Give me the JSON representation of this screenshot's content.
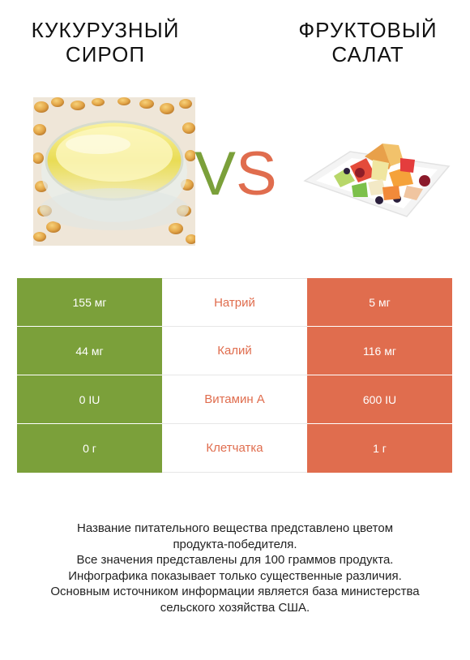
{
  "left_product": {
    "title_line1": "КУКУРУЗНЫЙ",
    "title_line2": "СИРОП"
  },
  "right_product": {
    "title_line1": "ФРУКТОВЫЙ",
    "title_line2": "САЛАТ"
  },
  "vs": {
    "v": "V",
    "s": "S"
  },
  "colors": {
    "left": "#7ba03a",
    "right": "#e06d4e"
  },
  "rows": [
    {
      "nutrient": "Натрий",
      "left": "155 мг",
      "right": "5 мг",
      "winner": "right"
    },
    {
      "nutrient": "Калий",
      "left": "44 мг",
      "right": "116 мг",
      "winner": "right"
    },
    {
      "nutrient": "Витамин A",
      "left": "0 IU",
      "right": "600 IU",
      "winner": "right"
    },
    {
      "nutrient": "Клетчатка",
      "left": "0 г",
      "right": "1 г",
      "winner": "right"
    }
  ],
  "footer": {
    "line1": "Название питательного вещества представлено цветом",
    "line2": "продукта-победителя.",
    "line3": "Все значения представлены для 100 граммов продукта.",
    "line4": "Инфографика показывает только существенные различия.",
    "line5": "Основным источником информации является база министерства",
    "line6": "сельского хозяйства США."
  }
}
